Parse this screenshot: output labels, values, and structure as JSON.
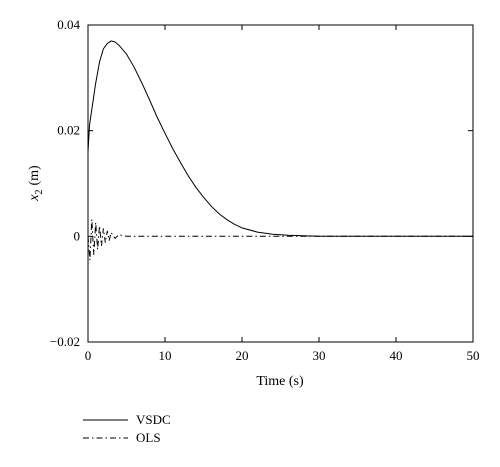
{
  "chart_data": {
    "type": "line",
    "xlabel": "Time (s)",
    "ylabel_main": "x",
    "ylabel_sub": "2",
    "ylabel_unit": "(m)",
    "xlim": [
      0,
      50
    ],
    "ylim": [
      -0.02,
      0.04
    ],
    "x_ticks": [
      0,
      10,
      20,
      30,
      40,
      50
    ],
    "x_tick_labels": [
      "0",
      "10",
      "20",
      "30",
      "40",
      "50"
    ],
    "y_ticks": [
      -0.02,
      0,
      0.02,
      0.04
    ],
    "y_tick_labels": [
      "−0.02",
      "0",
      "0.02",
      "0.04"
    ],
    "grid": false,
    "legend_position": "below-left",
    "series": [
      {
        "name": "VSDC",
        "style": "solid",
        "x": [
          0,
          0.2,
          0.5,
          1,
          1.5,
          2,
          2.5,
          3,
          3.5,
          4,
          5,
          6,
          7,
          8,
          9,
          10,
          11,
          12,
          13,
          14,
          15,
          16,
          17,
          18,
          19,
          20,
          22,
          24,
          26,
          28,
          30,
          32,
          35,
          40,
          45,
          50
        ],
        "y": [
          0.016,
          0.021,
          0.024,
          0.029,
          0.033,
          0.0355,
          0.0365,
          0.037,
          0.0368,
          0.0362,
          0.0345,
          0.032,
          0.029,
          0.0258,
          0.0225,
          0.0195,
          0.0166,
          0.014,
          0.0115,
          0.0093,
          0.0074,
          0.0057,
          0.0043,
          0.0032,
          0.0023,
          0.0016,
          0.0008,
          0.0004,
          0.0002,
          0.0001,
          0.0,
          0.0,
          0.0,
          0.0,
          0.0,
          0.0
        ]
      },
      {
        "name": "OLS",
        "style": "dashdot",
        "x": [
          0,
          0.25,
          0.5,
          0.75,
          1,
          1.25,
          1.5,
          1.75,
          2,
          2.25,
          2.5,
          2.75,
          3,
          3.5,
          4,
          5,
          10,
          20,
          30,
          33,
          40,
          50
        ],
        "y": [
          0,
          -0.0045,
          0.0032,
          -0.0035,
          0.0026,
          -0.0025,
          0.002,
          -0.0018,
          0.0015,
          -0.0012,
          0.001,
          -0.0008,
          0.0007,
          -0.0004,
          0.0003,
          0.0,
          0.0,
          0.0,
          0.0,
          0.0,
          0.0,
          0.0
        ]
      }
    ]
  }
}
